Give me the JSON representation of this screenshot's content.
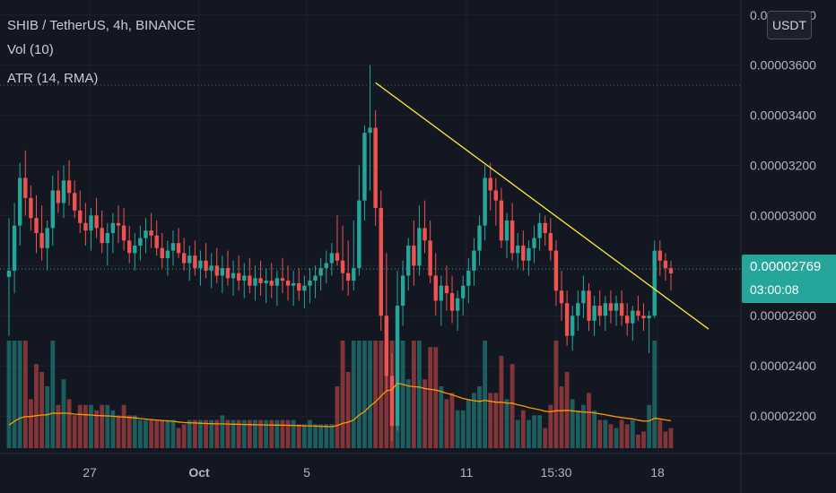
{
  "header": {
    "symbol": "SHIB / TetherUS, 4h, BINANCE",
    "volume_indicator": "Vol (10)",
    "atr_indicator": "ATR (14, RMA)"
  },
  "currency_button": "USDT",
  "last_price": {
    "value": "0.00002769",
    "countdown": "03:00:08"
  },
  "colors": {
    "up": "#26a69a",
    "down": "#ef5350",
    "trendline": "#ffeb3b",
    "atr": "#ff9800",
    "background": "#131722",
    "grid": "#1e222d"
  },
  "chart_data": {
    "type": "candlestick",
    "title": "SHIB / TetherUS, 4h, BINANCE",
    "y_axis": {
      "ticks": [
        "0.00003800",
        "0.00003600",
        "0.00003400",
        "0.00003200",
        "0.00003000",
        "0.00002800",
        "0.00002600",
        "0.00002400",
        "0.00002200"
      ],
      "range": [
        2.05e-05,
        3.86e-05
      ]
    },
    "x_axis": {
      "ticks": [
        "27",
        "Oct",
        "5",
        "11",
        "15:30",
        "18"
      ]
    },
    "candles_ohlc_1e8": [
      [
        2755,
        2990,
        2520,
        2780
      ],
      [
        2780,
        3050,
        2690,
        2960
      ],
      [
        2960,
        3210,
        2880,
        3150
      ],
      [
        3150,
        3260,
        3000,
        3070
      ],
      [
        3070,
        3120,
        2940,
        2990
      ],
      [
        2990,
        3080,
        2850,
        2930
      ],
      [
        2930,
        3040,
        2820,
        2870
      ],
      [
        2870,
        2980,
        2780,
        2950
      ],
      [
        2950,
        3160,
        2880,
        3100
      ],
      [
        3100,
        3180,
        3010,
        3050
      ],
      [
        3050,
        3200,
        2990,
        3140
      ],
      [
        3140,
        3220,
        3040,
        3090
      ],
      [
        3090,
        3140,
        2990,
        3020
      ],
      [
        3020,
        3100,
        2930,
        2970
      ],
      [
        2970,
        3050,
        2880,
        2940
      ],
      [
        2940,
        3030,
        2860,
        3000
      ],
      [
        3000,
        3070,
        2910,
        2950
      ],
      [
        2950,
        3020,
        2850,
        2890
      ],
      [
        2890,
        2970,
        2800,
        2930
      ],
      [
        2930,
        3010,
        2850,
        2970
      ],
      [
        2970,
        3040,
        2890,
        2960
      ],
      [
        2960,
        3030,
        2860,
        2900
      ],
      [
        2900,
        2960,
        2810,
        2850
      ],
      [
        2850,
        2930,
        2780,
        2880
      ],
      [
        2880,
        2960,
        2820,
        2910
      ],
      [
        2910,
        2990,
        2850,
        2940
      ],
      [
        2940,
        3010,
        2870,
        2920
      ],
      [
        2920,
        2980,
        2840,
        2870
      ],
      [
        2870,
        2930,
        2790,
        2830
      ],
      [
        2830,
        2900,
        2760,
        2860
      ],
      [
        2860,
        2940,
        2800,
        2890
      ],
      [
        2890,
        2950,
        2830,
        2850
      ],
      [
        2850,
        2910,
        2780,
        2810
      ],
      [
        2810,
        2880,
        2740,
        2840
      ],
      [
        2840,
        2900,
        2760,
        2790
      ],
      [
        2790,
        2860,
        2720,
        2820
      ],
      [
        2820,
        2890,
        2750,
        2780
      ],
      [
        2780,
        2850,
        2710,
        2800
      ],
      [
        2800,
        2870,
        2730,
        2760
      ],
      [
        2760,
        2840,
        2690,
        2790
      ],
      [
        2790,
        2860,
        2720,
        2750
      ],
      [
        2750,
        2820,
        2680,
        2770
      ],
      [
        2770,
        2840,
        2700,
        2740
      ],
      [
        2740,
        2810,
        2670,
        2760
      ],
      [
        2760,
        2830,
        2690,
        2720
      ],
      [
        2720,
        2800,
        2660,
        2750
      ],
      [
        2750,
        2820,
        2680,
        2730
      ],
      [
        2730,
        2790,
        2650,
        2740
      ],
      [
        2740,
        2810,
        2670,
        2720
      ],
      [
        2720,
        2780,
        2640,
        2750
      ],
      [
        2750,
        2830,
        2690,
        2740
      ],
      [
        2740,
        2800,
        2660,
        2720
      ],
      [
        2720,
        2780,
        2640,
        2730
      ],
      [
        2730,
        2790,
        2660,
        2700
      ],
      [
        2700,
        2760,
        2630,
        2720
      ],
      [
        2720,
        2790,
        2650,
        2740
      ],
      [
        2740,
        2800,
        2670,
        2760
      ],
      [
        2760,
        2830,
        2700,
        2790
      ],
      [
        2790,
        2860,
        2730,
        2810
      ],
      [
        2810,
        2890,
        2760,
        2850
      ],
      [
        2850,
        3000,
        2800,
        2820
      ],
      [
        2820,
        2960,
        2700,
        2770
      ],
      [
        2770,
        2900,
        2680,
        2740
      ],
      [
        2740,
        2980,
        2700,
        2790
      ],
      [
        2790,
        3200,
        2760,
        3060
      ],
      [
        3060,
        3360,
        2980,
        3330
      ],
      [
        3330,
        3600,
        3100,
        3350
      ],
      [
        3350,
        3420,
        2960,
        3030
      ],
      [
        3030,
        3100,
        2540,
        2600
      ],
      [
        2600,
        2850,
        2300,
        2360
      ],
      [
        2360,
        2450,
        2100,
        2160
      ],
      [
        2160,
        2780,
        2140,
        2640
      ],
      [
        2640,
        2820,
        2560,
        2760
      ],
      [
        2760,
        2910,
        2700,
        2880
      ],
      [
        2880,
        2980,
        2720,
        2800
      ],
      [
        2800,
        3040,
        2760,
        2950
      ],
      [
        2950,
        3060,
        2850,
        2900
      ],
      [
        2900,
        2980,
        2730,
        2760
      ],
      [
        2760,
        2850,
        2600,
        2660
      ],
      [
        2660,
        2760,
        2560,
        2720
      ],
      [
        2720,
        2800,
        2620,
        2690
      ],
      [
        2690,
        2760,
        2570,
        2620
      ],
      [
        2620,
        2700,
        2540,
        2670
      ],
      [
        2670,
        2760,
        2600,
        2720
      ],
      [
        2720,
        2830,
        2650,
        2780
      ],
      [
        2780,
        2910,
        2720,
        2860
      ],
      [
        2860,
        3000,
        2800,
        2960
      ],
      [
        2960,
        3200,
        2900,
        3150
      ],
      [
        3150,
        3210,
        3020,
        3100
      ],
      [
        3100,
        3150,
        2960,
        3060
      ],
      [
        3060,
        3110,
        2870,
        2900
      ],
      [
        2900,
        3010,
        2830,
        2980
      ],
      [
        2980,
        3050,
        2820,
        2850
      ],
      [
        2850,
        2930,
        2790,
        2880
      ],
      [
        2880,
        2940,
        2780,
        2820
      ],
      [
        2820,
        2900,
        2760,
        2870
      ],
      [
        2870,
        2960,
        2810,
        2910
      ],
      [
        2910,
        3010,
        2860,
        2970
      ],
      [
        2970,
        3000,
        2880,
        2930
      ],
      [
        2930,
        2990,
        2820,
        2860
      ],
      [
        2860,
        2900,
        2640,
        2700
      ],
      [
        2700,
        2780,
        2580,
        2650
      ],
      [
        2650,
        2700,
        2480,
        2520
      ],
      [
        2520,
        2640,
        2460,
        2600
      ],
      [
        2600,
        2700,
        2540,
        2650
      ],
      [
        2650,
        2760,
        2590,
        2700
      ],
      [
        2700,
        2730,
        2540,
        2580
      ],
      [
        2580,
        2680,
        2520,
        2640
      ],
      [
        2640,
        2700,
        2560,
        2600
      ],
      [
        2600,
        2680,
        2540,
        2650
      ],
      [
        2650,
        2700,
        2570,
        2620
      ],
      [
        2620,
        2680,
        2560,
        2650
      ],
      [
        2650,
        2700,
        2560,
        2600
      ],
      [
        2600,
        2650,
        2520,
        2570
      ],
      [
        2570,
        2640,
        2500,
        2620
      ],
      [
        2620,
        2680,
        2580,
        2600
      ],
      [
        2600,
        2650,
        2540,
        2590
      ],
      [
        2590,
        2620,
        2450,
        2600
      ],
      [
        2600,
        2900,
        2590,
        2860
      ],
      [
        2860,
        2900,
        2760,
        2820
      ],
      [
        2820,
        2850,
        2740,
        2790
      ],
      [
        2790,
        2820,
        2700,
        2769
      ]
    ],
    "candle_range_1e8": [
      0,
      0
    ],
    "trendline": {
      "from": [
        67,
        3.53e-05
      ],
      "to": [
        128,
        2.5e-05
      ]
    }
  }
}
